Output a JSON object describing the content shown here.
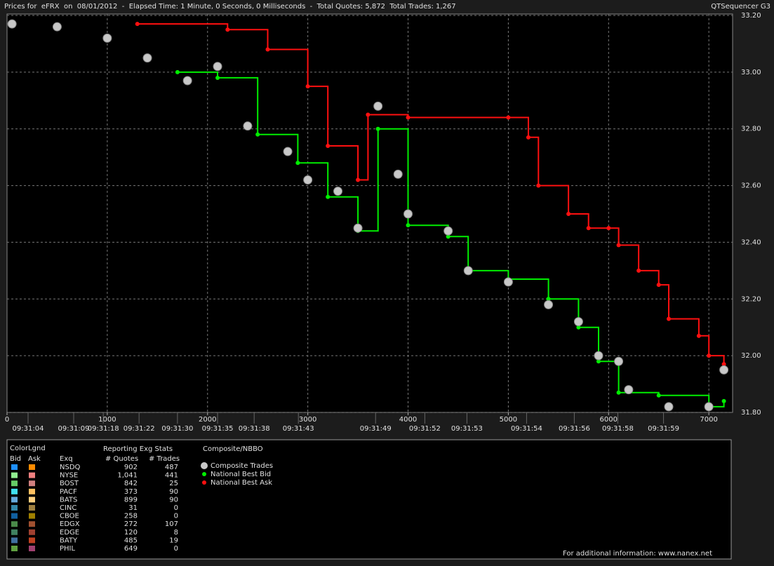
{
  "chart_data": {
    "type": "scatter",
    "title": "Prices for  eFRX  on  08/01/2012  -  Elapsed Time: 1 Minute, 0 Seconds, 0 Milliseconds  -  Total Quotes: 5,872  Total Trades: 1,267",
    "brand": "QTSequencer G3",
    "xlim": [
      0,
      7230
    ],
    "ylim": [
      31.8,
      33.2
    ],
    "xticks": [
      0,
      1000,
      2000,
      3000,
      4000,
      5000,
      6000,
      7000
    ],
    "yticks": [
      {
        "value": 31.8,
        "label": "31.80"
      },
      {
        "value": 32.0,
        "label": "32.00"
      },
      {
        "value": 32.2,
        "label": "32.20"
      },
      {
        "value": 32.4,
        "label": "32.40"
      },
      {
        "value": 32.6,
        "label": "32.60"
      },
      {
        "value": 32.8,
        "label": "32.80"
      },
      {
        "value": 33.0,
        "label": "33.00"
      },
      {
        "value": 33.2,
        "label": "33.20"
      }
    ],
    "time_ticks": [
      {
        "value": 210,
        "label": "09:31:04"
      },
      {
        "value": 665,
        "label": "09:31:09"
      },
      {
        "value": 960,
        "label": "09:31:18"
      },
      {
        "value": 1317,
        "label": "09:31:22"
      },
      {
        "value": 1700,
        "label": "09:31:30"
      },
      {
        "value": 2100,
        "label": "09:31:35"
      },
      {
        "value": 2465,
        "label": "09:31:38"
      },
      {
        "value": 2906,
        "label": "09:31:43"
      },
      {
        "value": 3676,
        "label": "09:31:49"
      },
      {
        "value": 4167,
        "label": "09:31:52"
      },
      {
        "value": 4587,
        "label": "09:31:53"
      },
      {
        "value": 5182,
        "label": "09:31:54"
      },
      {
        "value": 5658,
        "label": "09:31:56"
      },
      {
        "value": 6092,
        "label": "09:31:58"
      },
      {
        "value": 6548,
        "label": "09:31:59"
      }
    ],
    "grid": true,
    "series": [
      {
        "name": "Composite Trades",
        "color": "#c8c8c8",
        "marker": "circle",
        "x": [
          50,
          500,
          1000,
          1400,
          1800,
          2100,
          2400,
          2800,
          3000,
          3300,
          3500,
          3700,
          3900,
          4000,
          4400,
          4600,
          5000,
          5400,
          5700,
          5900,
          6100,
          6200,
          6600,
          7000,
          7150
        ],
        "values": [
          33.17,
          33.16,
          33.12,
          33.05,
          32.97,
          33.02,
          32.81,
          32.72,
          32.62,
          32.58,
          32.45,
          32.88,
          32.64,
          32.5,
          32.44,
          32.3,
          32.26,
          32.18,
          32.12,
          32.0,
          31.98,
          31.88,
          31.82,
          31.82,
          31.95
        ]
      },
      {
        "name": "National Best Bid",
        "color": "#00ee00",
        "marker": "dot",
        "x": [
          1700,
          2100,
          2500,
          2900,
          3200,
          3500,
          3700,
          4000,
          4400,
          4600,
          5000,
          5400,
          5700,
          5900,
          6100,
          6500,
          7000,
          7150
        ],
        "values": [
          33.0,
          32.98,
          32.78,
          32.68,
          32.56,
          32.44,
          32.8,
          32.46,
          32.42,
          32.3,
          32.27,
          32.2,
          32.1,
          31.98,
          31.87,
          31.86,
          31.82,
          31.84
        ]
      },
      {
        "name": "National Best Ask",
        "color": "#ff1010",
        "marker": "dot",
        "x": [
          1300,
          2200,
          2600,
          3000,
          3200,
          3500,
          3600,
          4000,
          5000,
          5200,
          5300,
          5600,
          5800,
          6000,
          6100,
          6300,
          6500,
          6600,
          6900,
          7000,
          7150
        ],
        "values": [
          33.17,
          33.15,
          33.08,
          32.95,
          32.74,
          32.62,
          32.85,
          32.84,
          32.84,
          32.77,
          32.6,
          32.5,
          32.45,
          32.45,
          32.39,
          32.3,
          32.25,
          32.13,
          32.07,
          32.0,
          31.97
        ]
      }
    ],
    "legend_title": "Composite/NBBO"
  },
  "color_legend": {
    "title": "ColorLgnd",
    "group_header": "Reporting Exg Stats",
    "headers": [
      "Bid",
      "Ask",
      "Exq",
      "# Quotes",
      "# Trades"
    ],
    "rows": [
      {
        "exchange": "NSDQ",
        "bid_color": "#1e90ff",
        "ask_color": "#ff8c00",
        "quotes": "902",
        "trades": "487"
      },
      {
        "exchange": "NYSE",
        "bid_color": "#90ee90",
        "ask_color": "#f08080",
        "quotes": "1,041",
        "trades": "441"
      },
      {
        "exchange": "BOST",
        "bid_color": "#66cc66",
        "ask_color": "#d08080",
        "quotes": "842",
        "trades": "25"
      },
      {
        "exchange": "PACF",
        "bid_color": "#40e0f0",
        "ask_color": "#ffc060",
        "quotes": "373",
        "trades": "90"
      },
      {
        "exchange": "BATS",
        "bid_color": "#66aadd",
        "ask_color": "#ffd080",
        "quotes": "899",
        "trades": "90"
      },
      {
        "exchange": "CINC",
        "bid_color": "#3388aa",
        "ask_color": "#a08040",
        "quotes": "31",
        "trades": "0"
      },
      {
        "exchange": "CBOE",
        "bid_color": "#1060a0",
        "ask_color": "#a08000",
        "quotes": "258",
        "trades": "0"
      },
      {
        "exchange": "EDGX",
        "bid_color": "#4a8a4a",
        "ask_color": "#a05030",
        "quotes": "272",
        "trades": "107"
      },
      {
        "exchange": "EDGE",
        "bid_color": "#408060",
        "ask_color": "#a04030",
        "quotes": "120",
        "trades": "8"
      },
      {
        "exchange": "BATY",
        "bid_color": "#4070a0",
        "ask_color": "#c04020",
        "quotes": "485",
        "trades": "19"
      },
      {
        "exchange": "PHIL",
        "bid_color": "#60a040",
        "ask_color": "#a04070",
        "quotes": "649",
        "trades": "0"
      }
    ]
  },
  "footer": "For additional information: www.nanex.net"
}
